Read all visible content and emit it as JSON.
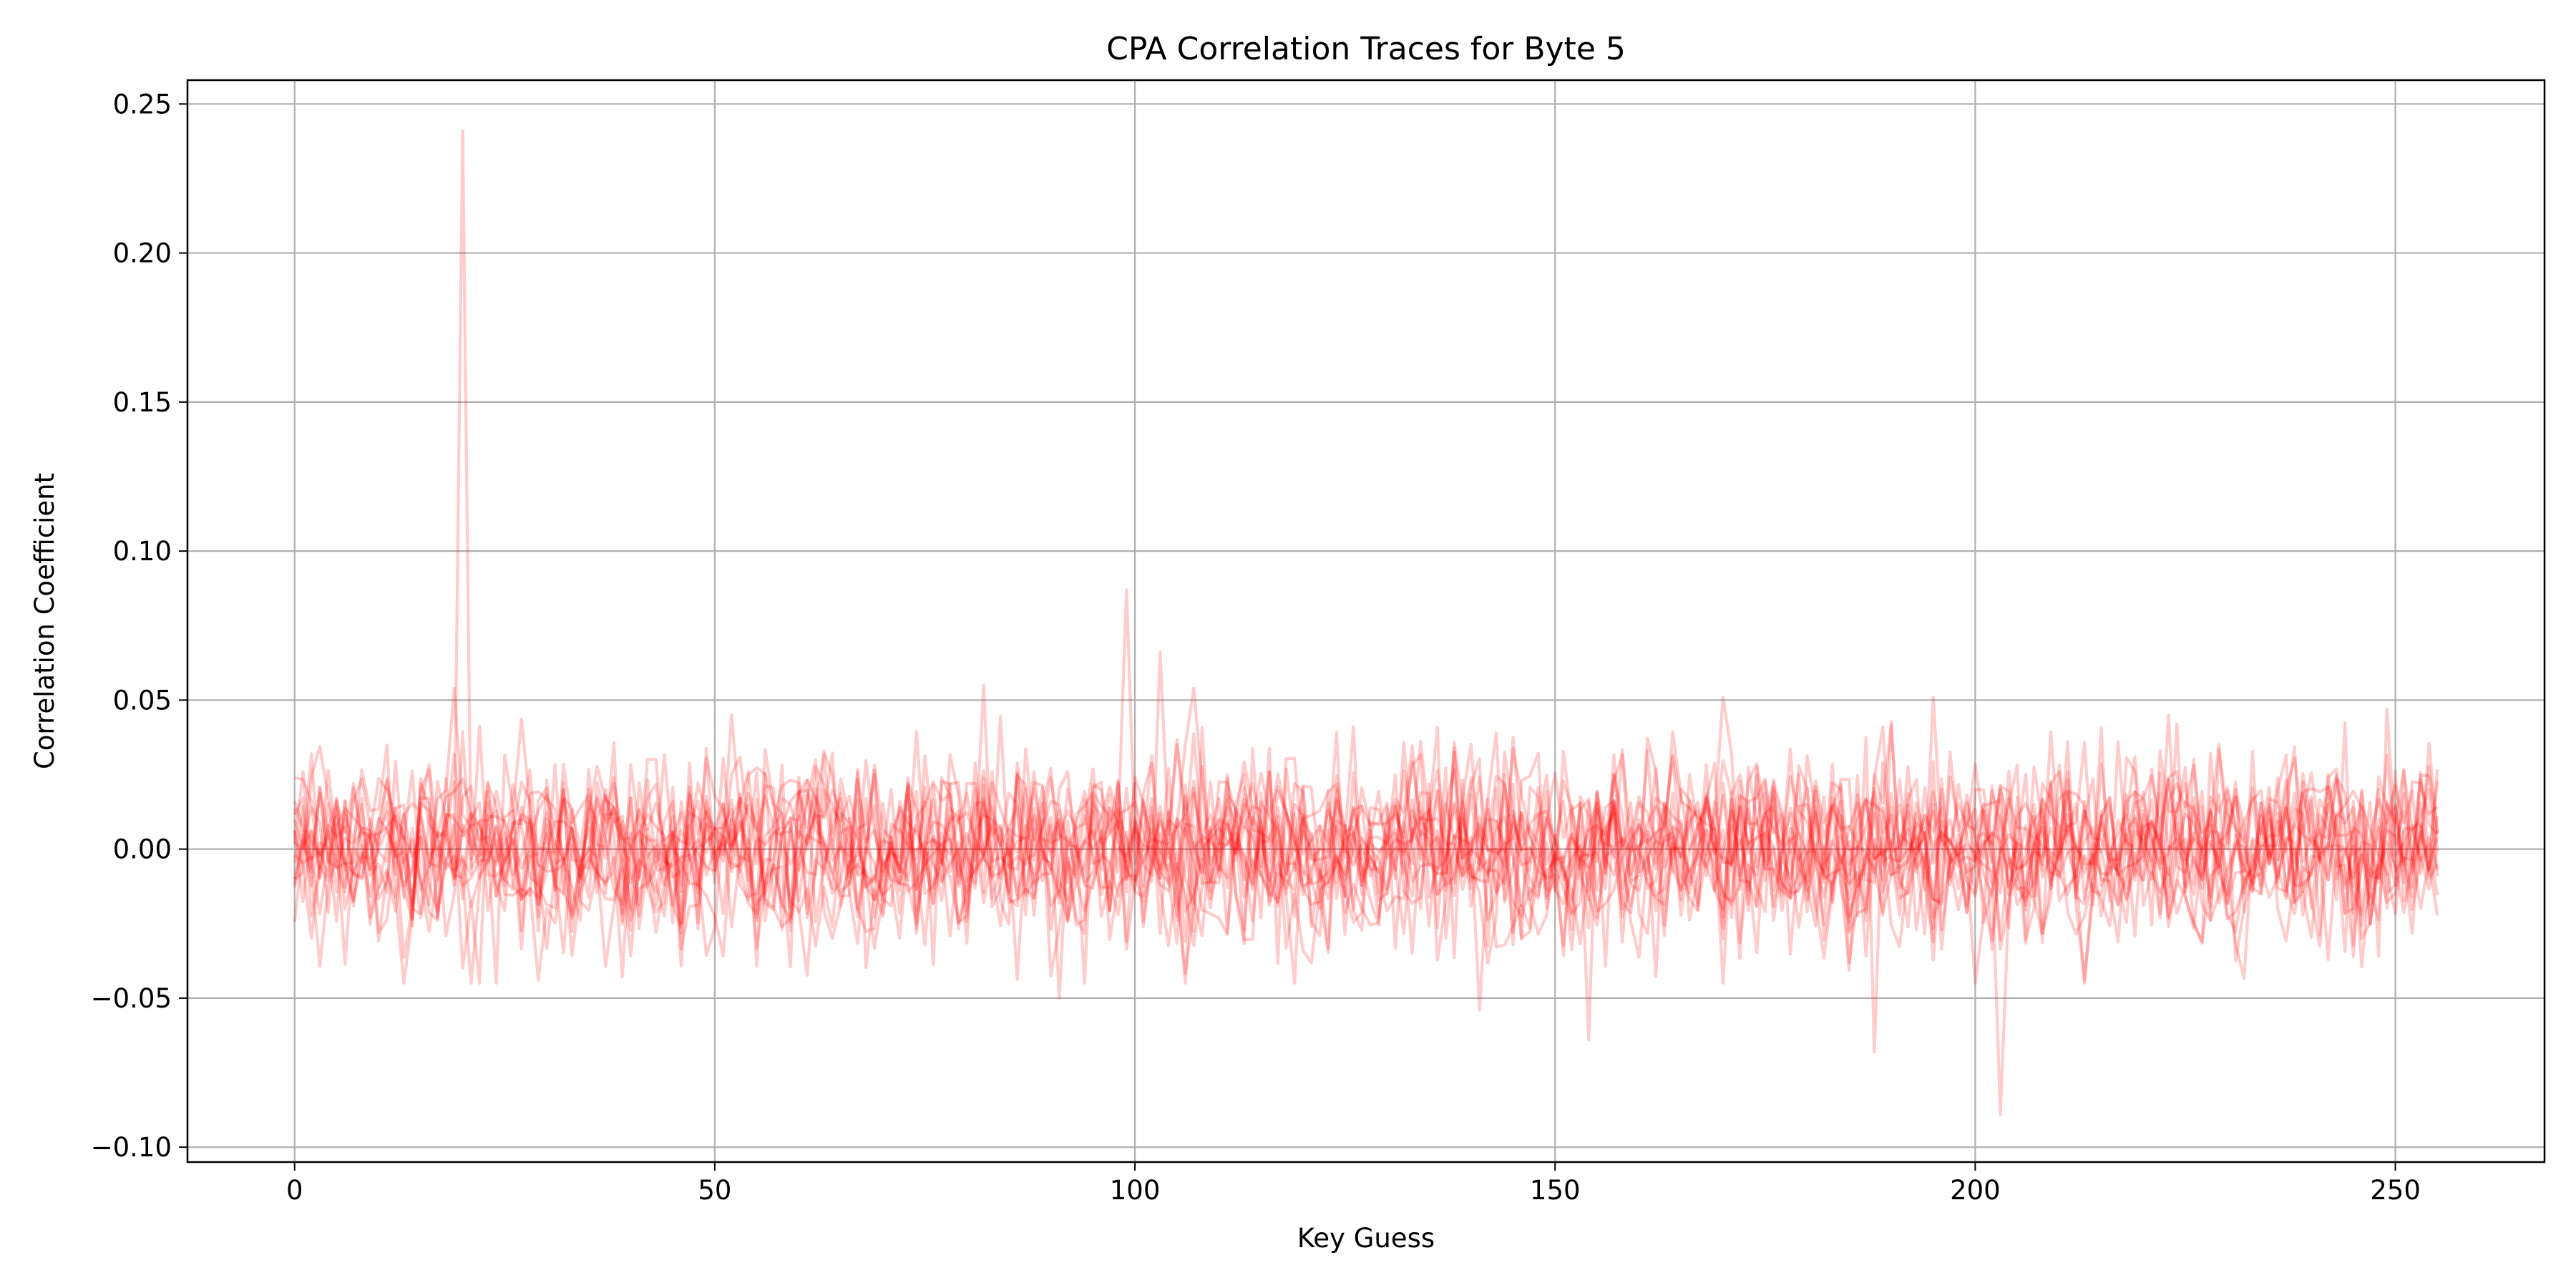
{
  "chart_data": {
    "type": "line",
    "title": "CPA Correlation Traces for Byte 5",
    "xlabel": "Key Guess",
    "ylabel": "Correlation Coefficient",
    "xlim": [
      -12.75,
      267.75
    ],
    "ylim": [
      -0.105,
      0.258
    ],
    "xticks": [
      0,
      50,
      100,
      150,
      200,
      250
    ],
    "xtick_labels": [
      "0",
      "50",
      "100",
      "150",
      "200",
      "250"
    ],
    "yticks": [
      -0.1,
      -0.05,
      0.0,
      0.05,
      0.1,
      0.15,
      0.2,
      0.25
    ],
    "ytick_labels": [
      "−0.10",
      "−0.05",
      "0.00",
      "0.05",
      "0.10",
      "0.15",
      "0.20",
      "0.25"
    ],
    "grid": true,
    "legend": "none",
    "line_color": "#ff0000",
    "line_alpha": 0.2,
    "x_range": [
      0,
      255
    ],
    "num_traces": 16,
    "noise_amplitude": 0.015,
    "peaks": [
      {
        "x": 20,
        "y": 0.241
      },
      {
        "x": 19,
        "y": 0.054
      },
      {
        "x": 99,
        "y": 0.087
      },
      {
        "x": 103,
        "y": 0.066
      },
      {
        "x": 107,
        "y": 0.054
      },
      {
        "x": 82,
        "y": 0.055
      },
      {
        "x": 170,
        "y": 0.051
      },
      {
        "x": 195,
        "y": 0.051
      },
      {
        "x": 249,
        "y": 0.047
      },
      {
        "x": 203,
        "y": -0.089
      },
      {
        "x": 188,
        "y": -0.068
      },
      {
        "x": 154,
        "y": -0.064
      },
      {
        "x": 141,
        "y": -0.054
      },
      {
        "x": 91,
        "y": -0.05
      },
      {
        "x": 29,
        "y": -0.044
      }
    ]
  }
}
